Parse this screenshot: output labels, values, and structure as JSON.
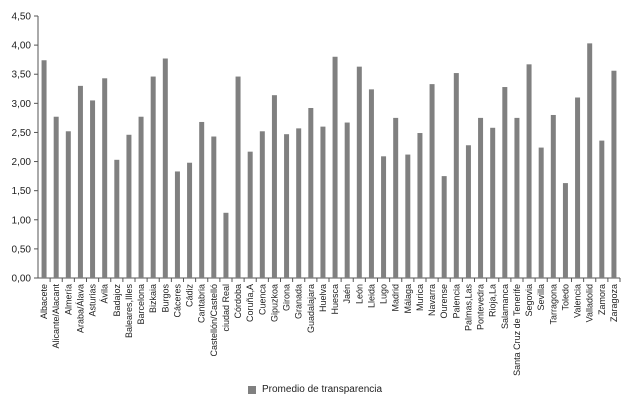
{
  "chart_data": {
    "type": "bar",
    "title": "",
    "xlabel": "",
    "ylabel": "",
    "ylim": [
      0,
      4.5
    ],
    "yticks": [
      "0,00",
      "0,50",
      "1,00",
      "1,50",
      "2,00",
      "2,50",
      "3,00",
      "3,50",
      "4,00",
      "4,50"
    ],
    "grid": false,
    "legend_position": "bottom",
    "bar_color": "#808080",
    "categories": [
      "Albacete",
      "Alicante/Alacant",
      "Almería",
      "Araba/Álava",
      "Asturias",
      "Ávila",
      "Badajoz",
      "Baleares,Illes",
      "Barcelona",
      "Bizkaia",
      "Burgos",
      "Cáceres",
      "Cádiz",
      "Cantabria",
      "Castellón/Castelló",
      "ciudad Real",
      "Córdoba",
      "Coruña,A",
      "Cuenca",
      "Gipuzkoa",
      "Girona",
      "Granada",
      "Guadalajara",
      "Huelva",
      "Huesca",
      "Jaén",
      "León",
      "Lleida",
      "Lugo",
      "Madrid",
      "Málaga",
      "Murica",
      "Navarra",
      "Ourense",
      "Palencia",
      "Palmas,Las",
      "Pontevedra",
      "Rioja,La",
      "Salamanca",
      "Santa Cruz de Tenerife",
      "Segovia",
      "Sevilla",
      "Tarragona",
      "Toledo",
      "Valencia",
      "Valladolid",
      "Zamora",
      "Zaragoza"
    ],
    "series": [
      {
        "name": "Promedio de transparencia",
        "values": [
          3.74,
          2.77,
          2.52,
          3.3,
          3.05,
          3.43,
          2.03,
          2.46,
          2.77,
          3.46,
          3.77,
          1.83,
          1.98,
          2.68,
          2.43,
          1.12,
          3.46,
          2.17,
          2.52,
          3.14,
          2.47,
          2.57,
          2.92,
          2.6,
          3.8,
          2.67,
          3.63,
          3.24,
          2.09,
          2.75,
          2.12,
          2.49,
          3.33,
          1.75,
          3.52,
          2.28,
          2.75,
          2.58,
          3.28,
          2.75,
          3.67,
          2.24,
          2.8,
          1.63,
          3.1,
          4.03,
          2.36,
          3.56
        ]
      }
    ]
  }
}
